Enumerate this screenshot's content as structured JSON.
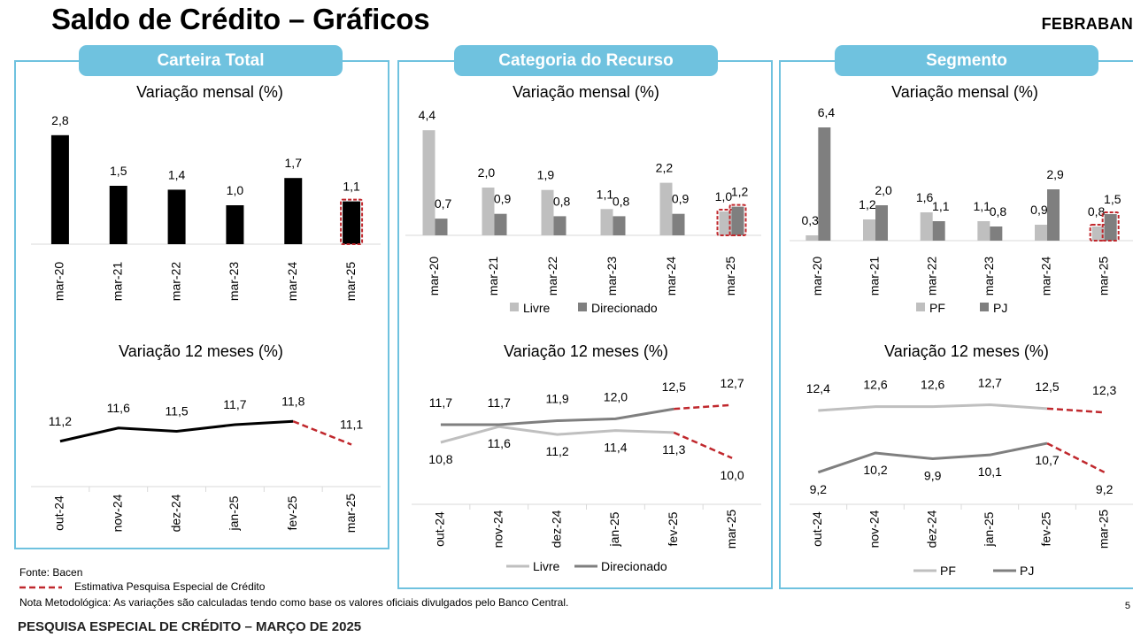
{
  "header": {
    "title": "Saldo de Crédito – Gráficos",
    "brand": "FEBRABAN"
  },
  "panels": [
    {
      "title": "Carteira Total"
    },
    {
      "title": "Categoria do Recurso"
    },
    {
      "title": "Segmento"
    }
  ],
  "colors": {
    "panel_border": "#6fc2df",
    "black": "#000000",
    "light_gray": "#bfbfbf",
    "dark_gray": "#7f7f7f",
    "estimate_red": "#c0282d"
  },
  "chart_data": [
    {
      "id": "total_mensal",
      "type": "bar",
      "title": "Variação mensal (%)",
      "categories": [
        "mar-20",
        "mar-21",
        "mar-22",
        "mar-23",
        "mar-24",
        "mar-25"
      ],
      "series": [
        {
          "values": [
            2.8,
            1.5,
            1.4,
            1.0,
            1.7,
            1.1
          ]
        }
      ],
      "labels": [
        "2,8",
        "1,5",
        "1,4",
        "1,0",
        "1,7",
        "1,1"
      ],
      "estimate_last": true
    },
    {
      "id": "total_12m",
      "type": "line",
      "title": "Variação 12 meses (%)",
      "categories": [
        "out-24",
        "nov-24",
        "dez-24",
        "jan-25",
        "fev-25",
        "mar-25"
      ],
      "series": [
        {
          "values": [
            11.2,
            11.6,
            11.5,
            11.7,
            11.8,
            11.1
          ],
          "labels": [
            "11,2",
            "11,6",
            "11,5",
            "11,7",
            "11,8",
            "11,1"
          ]
        }
      ],
      "estimate_last": true
    },
    {
      "id": "recurso_mensal",
      "type": "bar",
      "title": "Variação mensal (%)",
      "categories": [
        "mar-20",
        "mar-21",
        "mar-22",
        "mar-23",
        "mar-24",
        "mar-25"
      ],
      "series": [
        {
          "name": "Livre",
          "values": [
            4.4,
            2.0,
            1.9,
            1.1,
            2.2,
            1.0
          ],
          "labels": [
            "4,4",
            "2,0",
            "1,9",
            "1,1",
            "2,2",
            "1,0"
          ]
        },
        {
          "name": "Direcionado",
          "values": [
            0.7,
            0.9,
            0.8,
            0.8,
            0.9,
            1.2
          ],
          "labels": [
            "0,7",
            "0,9",
            "0,8",
            "0,8",
            "0,9",
            "1,2"
          ]
        }
      ],
      "estimate_last": true
    },
    {
      "id": "recurso_12m",
      "type": "line",
      "title": "Variação 12 meses (%)",
      "categories": [
        "out-24",
        "nov-24",
        "dez-24",
        "jan-25",
        "fev-25",
        "mar-25"
      ],
      "series": [
        {
          "name": "Livre",
          "values": [
            10.8,
            11.6,
            11.2,
            11.4,
            11.3,
            10.0
          ],
          "labels": [
            "10,8",
            "11,6",
            "11,2",
            "11,4",
            "11,3",
            "10,0"
          ]
        },
        {
          "name": "Direcionado",
          "values": [
            11.7,
            11.7,
            11.9,
            12.0,
            12.5,
            12.7
          ],
          "labels": [
            "11,7",
            "11,7",
            "11,9",
            "12,0",
            "12,5",
            "12,7"
          ]
        }
      ],
      "estimate_last": true
    },
    {
      "id": "segmento_mensal",
      "type": "bar",
      "title": "Variação mensal (%)",
      "categories": [
        "mar-20",
        "mar-21",
        "mar-22",
        "mar-23",
        "mar-24",
        "mar-25"
      ],
      "series": [
        {
          "name": "PF",
          "values": [
            0.3,
            1.2,
            1.6,
            1.1,
            0.9,
            0.8
          ],
          "labels": [
            "0,3",
            "1,2",
            "1,6",
            "1,1",
            "0,9",
            "0,8"
          ]
        },
        {
          "name": "PJ",
          "values": [
            6.4,
            2.0,
            1.1,
            0.8,
            2.9,
            1.5
          ],
          "labels": [
            "6,4",
            "2,0",
            "1,1",
            "0,8",
            "2,9",
            "1,5"
          ]
        }
      ],
      "estimate_last": true
    },
    {
      "id": "segmento_12m",
      "type": "line",
      "title": "Variação 12 meses (%)",
      "categories": [
        "out-24",
        "nov-24",
        "dez-24",
        "jan-25",
        "fev-25",
        "mar-25"
      ],
      "series": [
        {
          "name": "PF",
          "values": [
            12.4,
            12.6,
            12.6,
            12.7,
            12.5,
            12.3
          ],
          "labels": [
            "12,4",
            "12,6",
            "12,6",
            "12,7",
            "12,5",
            "12,3"
          ]
        },
        {
          "name": "PJ",
          "values": [
            9.2,
            10.2,
            9.9,
            10.1,
            10.7,
            9.2
          ],
          "labels": [
            "9,2",
            "10,2",
            "9,9",
            "10,1",
            "10,7",
            "9,2"
          ]
        }
      ],
      "estimate_last": true
    }
  ],
  "footnotes": {
    "source": "Fonte: Bacen",
    "estimate": "Estimativa Pesquisa Especial de Crédito",
    "method_note": "Nota Metodológica: As variações são calculadas tendo como base os valores oficiais divulgados pelo Banco Central."
  },
  "footer": {
    "survey": "PESQUISA ESPECIAL DE CRÉDITO – MARÇO DE 2025",
    "page": "5"
  }
}
